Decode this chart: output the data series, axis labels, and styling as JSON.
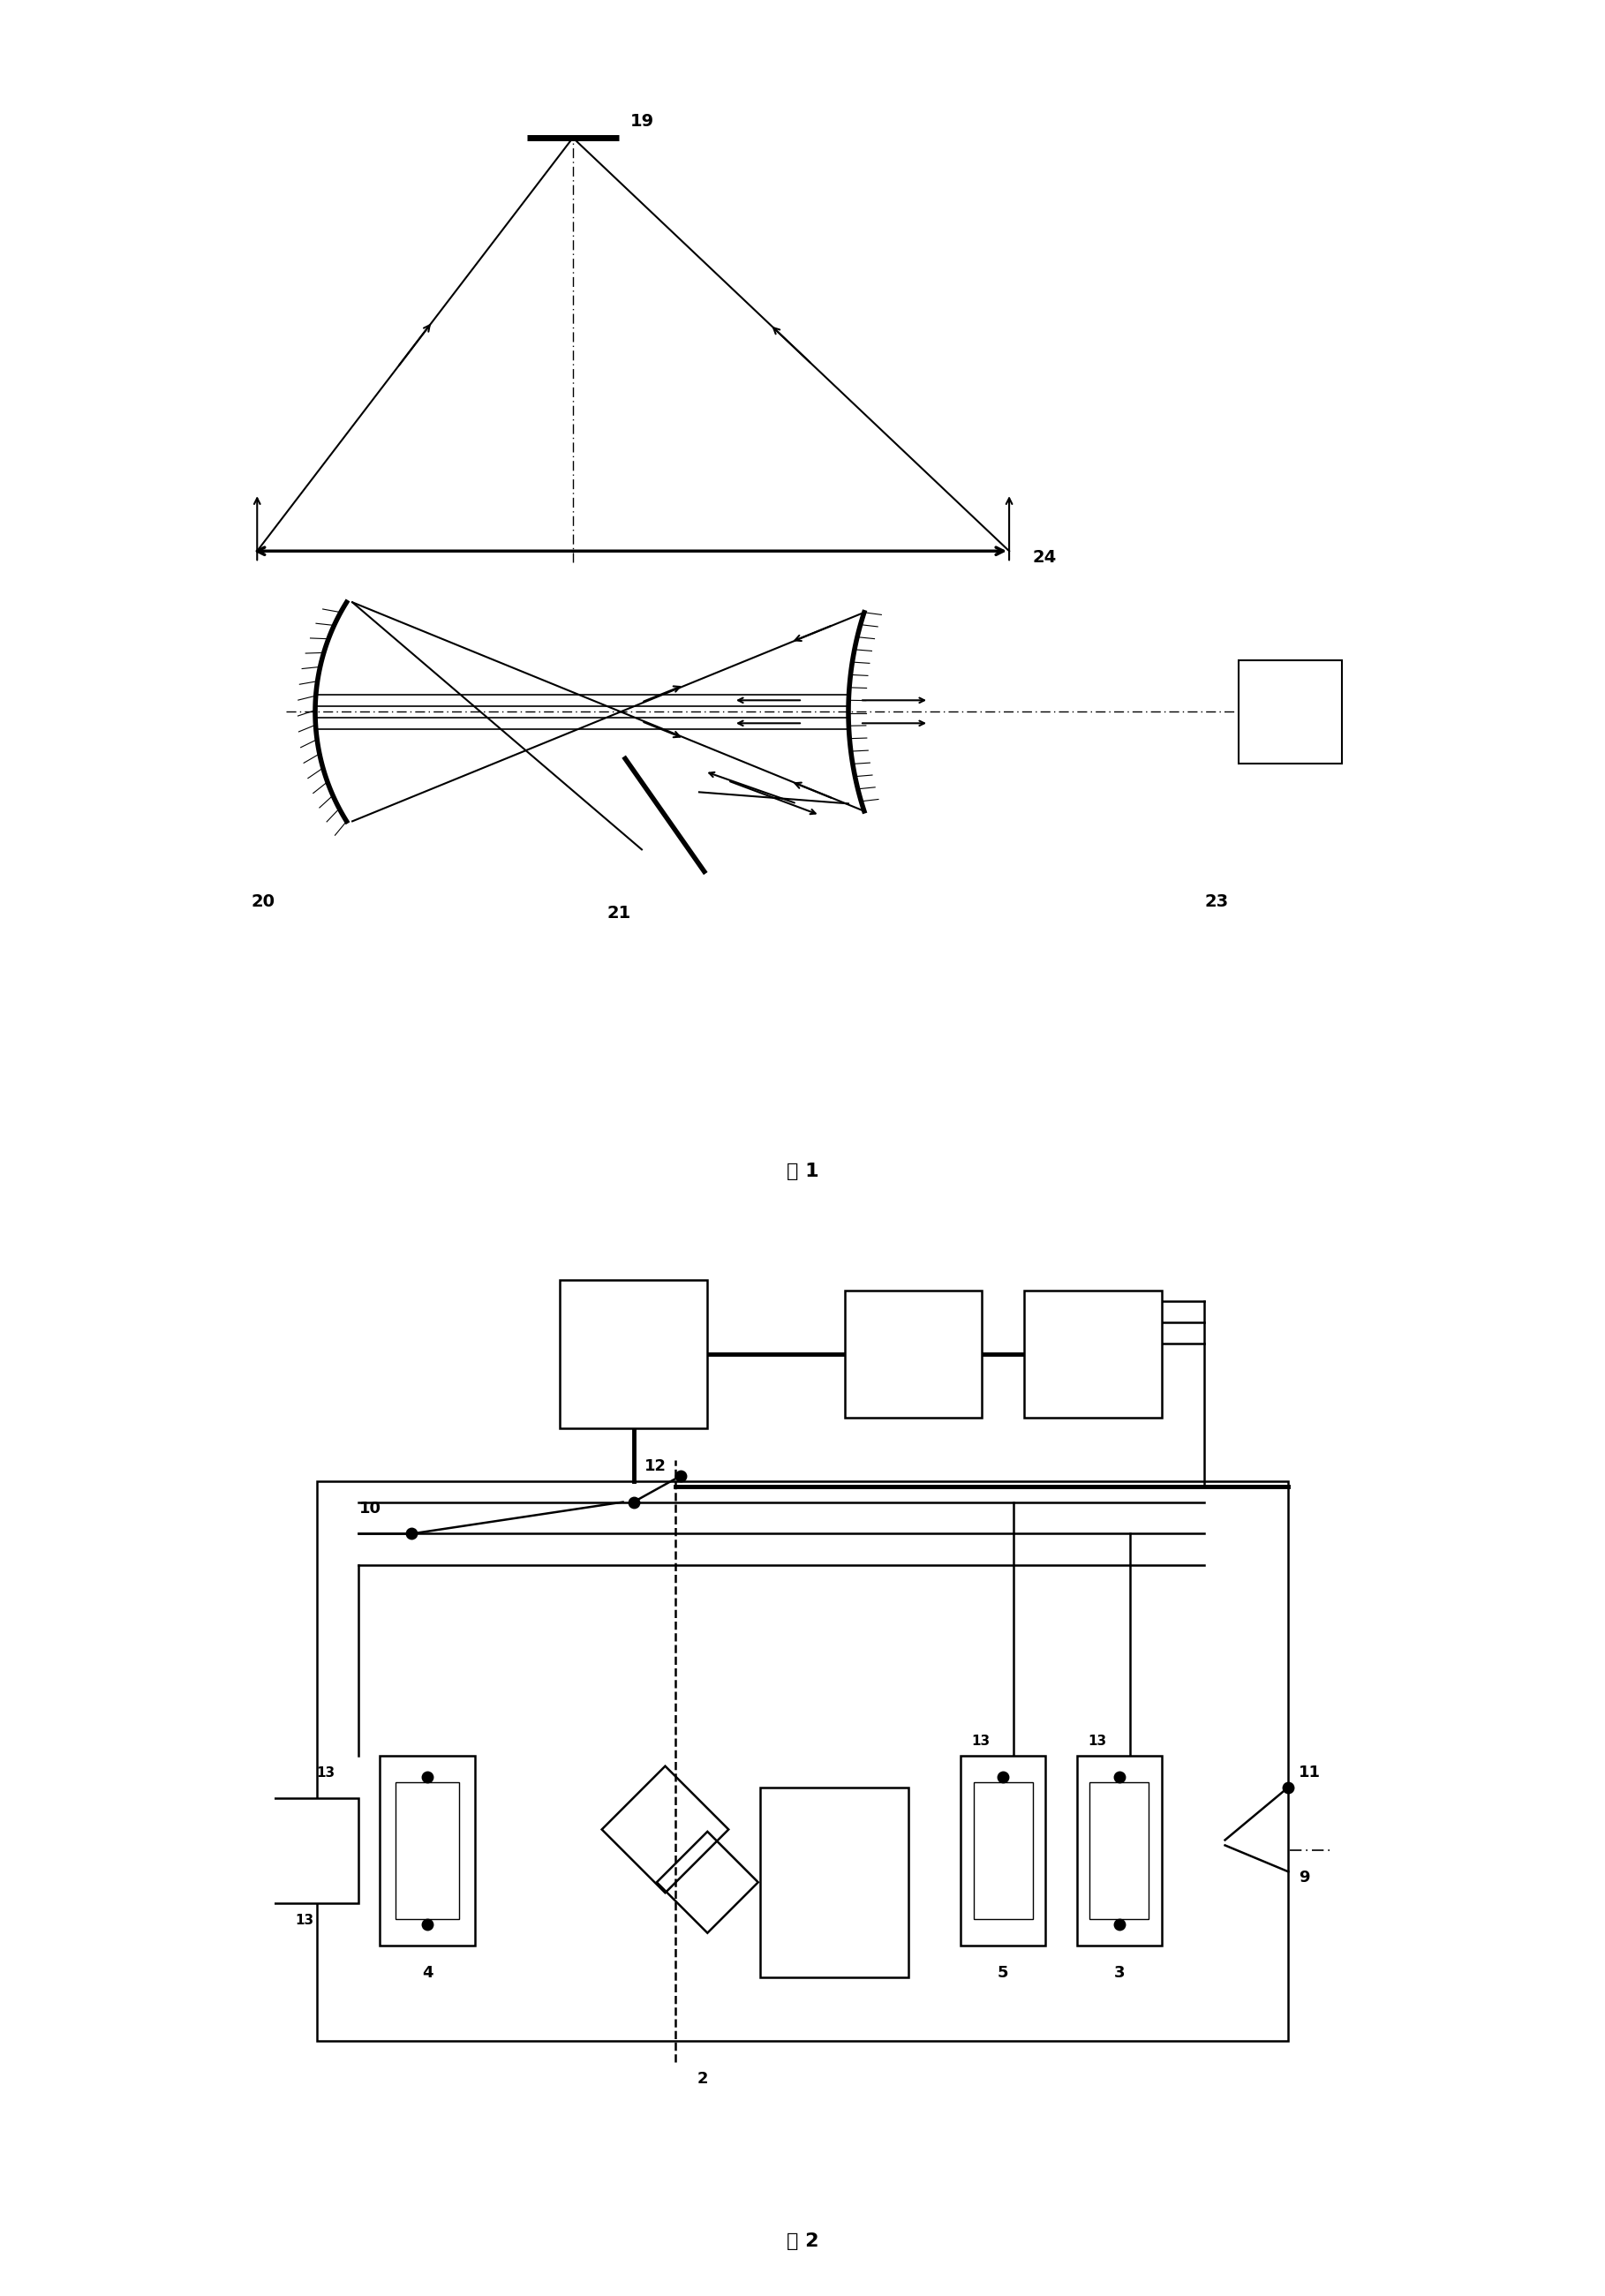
{
  "fig_width": 18.18,
  "fig_height": 26.01,
  "bg_color": "#ffffff",
  "fig1_label": "图 1",
  "fig2_label": "图 2"
}
